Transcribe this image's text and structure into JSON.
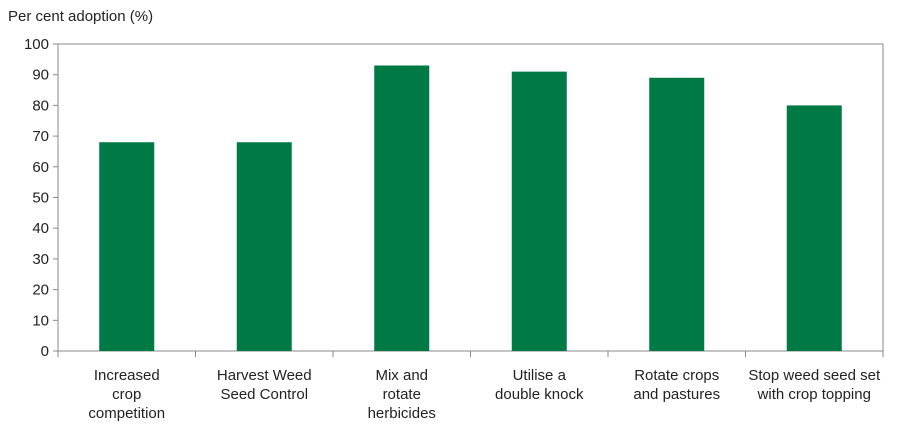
{
  "chart_data": {
    "type": "bar",
    "title": "",
    "ylabel": "Per cent adoption (%)",
    "xlabel": "",
    "ylim": [
      0,
      100
    ],
    "yticks": [
      0,
      10,
      20,
      30,
      40,
      50,
      60,
      70,
      80,
      90,
      100
    ],
    "grid": false,
    "bar_color": "#007A45",
    "categories": [
      [
        "Increased",
        "crop",
        "competition"
      ],
      [
        "Harvest Weed",
        "Seed Control"
      ],
      [
        "Mix and",
        "rotate",
        "herbicides"
      ],
      [
        "Utilise a",
        "double knock"
      ],
      [
        "Rotate crops",
        "and pastures"
      ],
      [
        "Stop weed seed set",
        "with crop topping"
      ]
    ],
    "values": [
      68,
      68,
      93,
      91,
      89,
      80
    ]
  }
}
